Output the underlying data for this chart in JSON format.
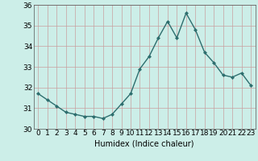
{
  "x": [
    0,
    1,
    2,
    3,
    4,
    5,
    6,
    7,
    8,
    9,
    10,
    11,
    12,
    13,
    14,
    15,
    16,
    17,
    18,
    19,
    20,
    21,
    22,
    23
  ],
  "y": [
    31.7,
    31.4,
    31.1,
    30.8,
    30.7,
    30.6,
    30.6,
    30.5,
    30.7,
    31.2,
    31.7,
    32.9,
    33.5,
    34.4,
    35.2,
    34.4,
    35.6,
    34.8,
    33.7,
    33.2,
    32.6,
    32.5,
    32.7,
    32.1
  ],
  "line_color": "#2d6e6e",
  "marker": "D",
  "marker_size": 2.0,
  "bg_color": "#cceee8",
  "grid_color_h": "#c8a0a0",
  "grid_color_v": "#c8a0a0",
  "xlabel": "Humidex (Indice chaleur)",
  "ylim": [
    30,
    36
  ],
  "xlim": [
    -0.5,
    23.5
  ],
  "yticks": [
    30,
    31,
    32,
    33,
    34,
    35,
    36
  ],
  "xticks": [
    0,
    1,
    2,
    3,
    4,
    5,
    6,
    7,
    8,
    9,
    10,
    11,
    12,
    13,
    14,
    15,
    16,
    17,
    18,
    19,
    20,
    21,
    22,
    23
  ],
  "xlabel_fontsize": 7,
  "tick_fontsize": 6.5,
  "linewidth": 1.0
}
